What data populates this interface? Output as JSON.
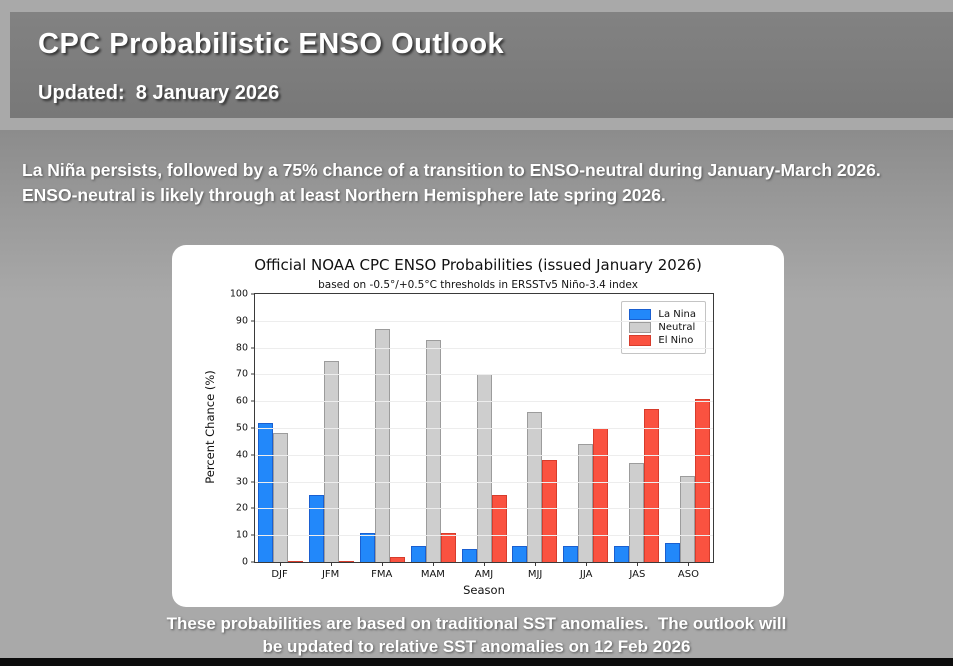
{
  "header": {
    "title": "CPC Probabilistic ENSO Outlook",
    "updated": "Updated:  8 January 2026"
  },
  "intro": {
    "text": "La Niña persists, followed by a 75% chance of a transition to ENSO-neutral during January-March 2026. ENSO-neutral is likely through at least Northern Hemisphere late spring 2026."
  },
  "chart_data": {
    "type": "bar",
    "title": "Official NOAA CPC ENSO Probabilities (issued January 2026)",
    "subtitle": "based on -0.5°/+0.5°C thresholds in ERSSTv5 Niño-3.4 index",
    "xlabel": "Season",
    "ylabel": "Percent Chance (%)",
    "ylim": [
      0,
      100
    ],
    "ytick_step": 10,
    "grid": true,
    "legend_position": "top-right",
    "categories": [
      "DJF",
      "JFM",
      "FMA",
      "MAM",
      "AMJ",
      "MJJ",
      "JJA",
      "JAS",
      "ASO"
    ],
    "series": [
      {
        "name": "La Nina",
        "color": "#2288fa",
        "edge_color": "#1a5fd0",
        "values": [
          52,
          25,
          11,
          6,
          5,
          6,
          6,
          6,
          7
        ]
      },
      {
        "name": "Neutral",
        "color": "#cecece",
        "edge_color": "#9c9c9c",
        "values": [
          48,
          75,
          87,
          83,
          70,
          56,
          44,
          37,
          32
        ]
      },
      {
        "name": "El Nino",
        "color": "#fa5240",
        "edge_color": "#d63c2c",
        "values": [
          0,
          0,
          2,
          11,
          25,
          38,
          50,
          57,
          61
        ]
      }
    ]
  },
  "footer": {
    "line1": "These probabilities are based on traditional SST anomalies.  The outlook will",
    "line2": "be updated to relative SST anomalies on 12 Feb 2026"
  },
  "colors": {
    "header_band": "#7d7d7d",
    "page_background": "#a9a9a9",
    "panel_background": "#ffffff",
    "text": "#ffffff",
    "bottom_bar": "#0c0c0c"
  }
}
